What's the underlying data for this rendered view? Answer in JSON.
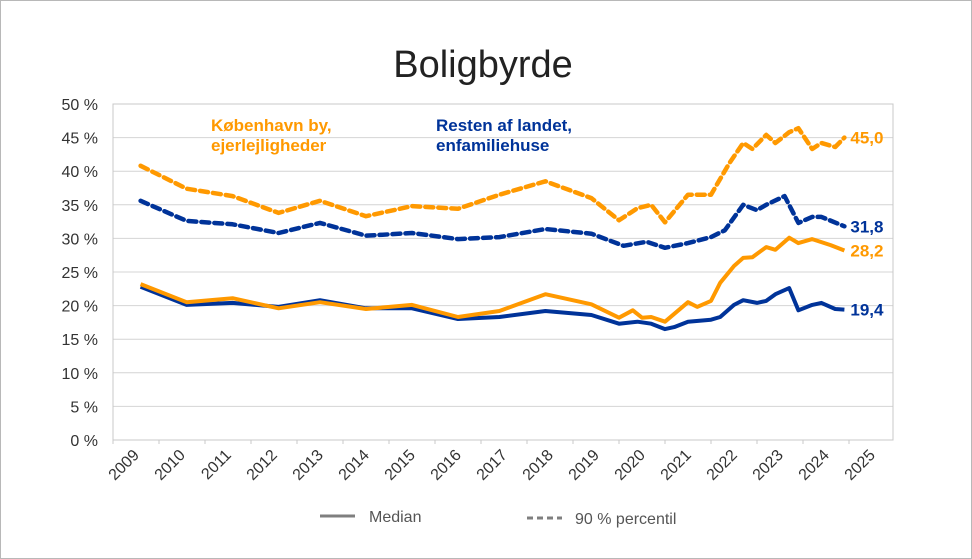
{
  "chart_data": {
    "type": "line",
    "title": "Boligbyrde",
    "xlabel": "",
    "ylabel": "",
    "ylim": [
      0,
      50
    ],
    "yticks": [
      "0 %",
      "5 %",
      "10 %",
      "15 %",
      "20 %",
      "25 %",
      "30 %",
      "35 %",
      "40 %",
      "45 %",
      "50 %"
    ],
    "xticks": [
      "2009",
      "2010",
      "2011",
      "2012",
      "2013",
      "2014",
      "2015",
      "2016",
      "2017",
      "2018",
      "2019",
      "2020",
      "2021",
      "2022",
      "2023",
      "2024",
      "2025"
    ],
    "grid": true,
    "annotations": {
      "kbh": [
        "København by,",
        "ejerlejligheder"
      ],
      "resten": [
        "Resten af landet,",
        "enfamiliehuse"
      ]
    },
    "legend": {
      "placement": "bottom",
      "items": [
        "Median",
        "90 % percentil"
      ]
    },
    "colors": {
      "kbh": "#ff9900",
      "resten": "#003399",
      "legend": "#7f7f7f"
    },
    "series": [
      {
        "name": "Resten af landet, median",
        "group": "resten",
        "style": "solid",
        "end_label": "19,4",
        "x": [
          2009.1,
          2010.1,
          2011.1,
          2012.1,
          2013.0,
          2014.0,
          2015.0,
          2016.0,
          2016.9,
          2017.9,
          2018.9,
          2019.5,
          2019.9,
          2020.2,
          2020.5,
          2020.7,
          2021.0,
          2021.5,
          2021.7,
          2022.0,
          2022.2,
          2022.5,
          2022.7,
          2022.9,
          2023.2,
          2023.4,
          2023.7,
          2023.9,
          2024.2,
          2024.4
        ],
        "y": [
          22.8,
          20.1,
          20.4,
          19.8,
          20.8,
          19.6,
          19.6,
          18.0,
          18.3,
          19.2,
          18.6,
          17.3,
          17.6,
          17.3,
          16.5,
          16.8,
          17.6,
          17.9,
          18.3,
          20.1,
          20.8,
          20.4,
          20.7,
          21.7,
          22.6,
          19.3,
          20.1,
          20.4,
          19.5,
          19.4
        ]
      },
      {
        "name": "København by, median",
        "group": "kbh",
        "style": "solid",
        "end_label": "28,2",
        "x": [
          2009.1,
          2010.1,
          2011.1,
          2012.1,
          2013.0,
          2014.0,
          2015.0,
          2016.0,
          2016.9,
          2017.9,
          2018.9,
          2019.5,
          2019.8,
          2020.0,
          2020.2,
          2020.5,
          2021.0,
          2021.2,
          2021.5,
          2021.7,
          2022.0,
          2022.2,
          2022.4,
          2022.7,
          2022.9,
          2023.2,
          2023.4,
          2023.7,
          2024.1,
          2024.4
        ],
        "y": [
          23.2,
          20.5,
          21.1,
          19.6,
          20.5,
          19.5,
          20.1,
          18.3,
          19.2,
          21.7,
          20.2,
          18.2,
          19.3,
          18.2,
          18.3,
          17.6,
          20.5,
          19.8,
          20.7,
          23.4,
          25.9,
          27.1,
          27.2,
          28.7,
          28.3,
          30.1,
          29.3,
          29.9,
          29.0,
          28.2
        ]
      },
      {
        "name": "Resten af landet, 90 % percentil",
        "group": "resten",
        "style": "dashed",
        "end_label": "31,8",
        "x": [
          2009.1,
          2010.1,
          2011.1,
          2012.1,
          2013.0,
          2014.0,
          2015.0,
          2016.0,
          2016.9,
          2017.9,
          2018.9,
          2019.6,
          2020.1,
          2020.5,
          2021.0,
          2021.5,
          2021.8,
          2022.2,
          2022.5,
          2022.7,
          2023.1,
          2023.4,
          2023.7,
          2023.9,
          2024.4
        ],
        "y": [
          35.6,
          32.6,
          32.1,
          30.8,
          32.3,
          30.4,
          30.8,
          29.9,
          30.2,
          31.4,
          30.7,
          28.9,
          29.5,
          28.6,
          29.3,
          30.2,
          31.2,
          35.0,
          34.2,
          35.0,
          36.3,
          32.3,
          33.2,
          33.2,
          31.8
        ]
      },
      {
        "name": "København by, 90 % percentil",
        "group": "kbh",
        "style": "dashed",
        "end_label": "45,0",
        "x": [
          2009.1,
          2010.1,
          2011.1,
          2012.1,
          2013.0,
          2014.0,
          2015.0,
          2016.0,
          2016.9,
          2017.9,
          2018.9,
          2019.5,
          2019.9,
          2020.2,
          2020.5,
          2021.0,
          2021.5,
          2021.9,
          2022.2,
          2022.4,
          2022.7,
          2022.9,
          2023.2,
          2023.4,
          2023.7,
          2023.9,
          2024.2,
          2024.4
        ],
        "y": [
          40.8,
          37.4,
          36.3,
          33.8,
          35.6,
          33.3,
          34.8,
          34.4,
          36.5,
          38.5,
          36.0,
          32.7,
          34.5,
          35.0,
          32.4,
          36.5,
          36.5,
          41.2,
          44.2,
          43.3,
          45.4,
          44.2,
          45.8,
          46.4,
          43.3,
          44.2,
          43.6,
          45.0
        ]
      }
    ]
  }
}
